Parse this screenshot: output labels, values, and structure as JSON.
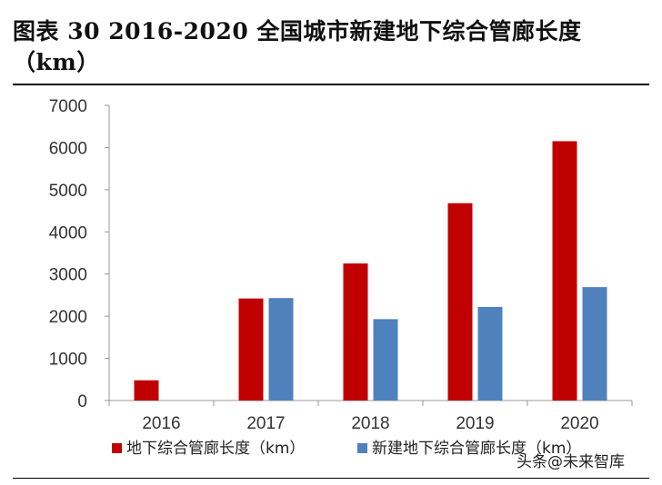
{
  "title": "图表 30 2016-2020 全国城市新建地下综合管廊长度（km）",
  "watermark": "头条@未来智库",
  "chart_data": {
    "type": "bar",
    "title": "图表 30 2016-2020 全国城市新建地下综合管廊长度（km）",
    "categories": [
      "2016",
      "2017",
      "2018",
      "2019",
      "2020"
    ],
    "series": [
      {
        "name": "地下综合管廊长度（km）",
        "color": "#C00000",
        "values": [
          480,
          2420,
          3250,
          4680,
          6150
        ]
      },
      {
        "name": "新建地下综合管廊长度（km）",
        "color": "#4F81BD",
        "values": [
          null,
          2430,
          1930,
          2220,
          2690
        ]
      }
    ],
    "ylim": [
      0,
      7000
    ],
    "yticks": [
      0,
      1000,
      2000,
      3000,
      4000,
      5000,
      6000,
      7000
    ],
    "xlabel": "",
    "ylabel": "",
    "grid": false,
    "legend": "bottom"
  }
}
